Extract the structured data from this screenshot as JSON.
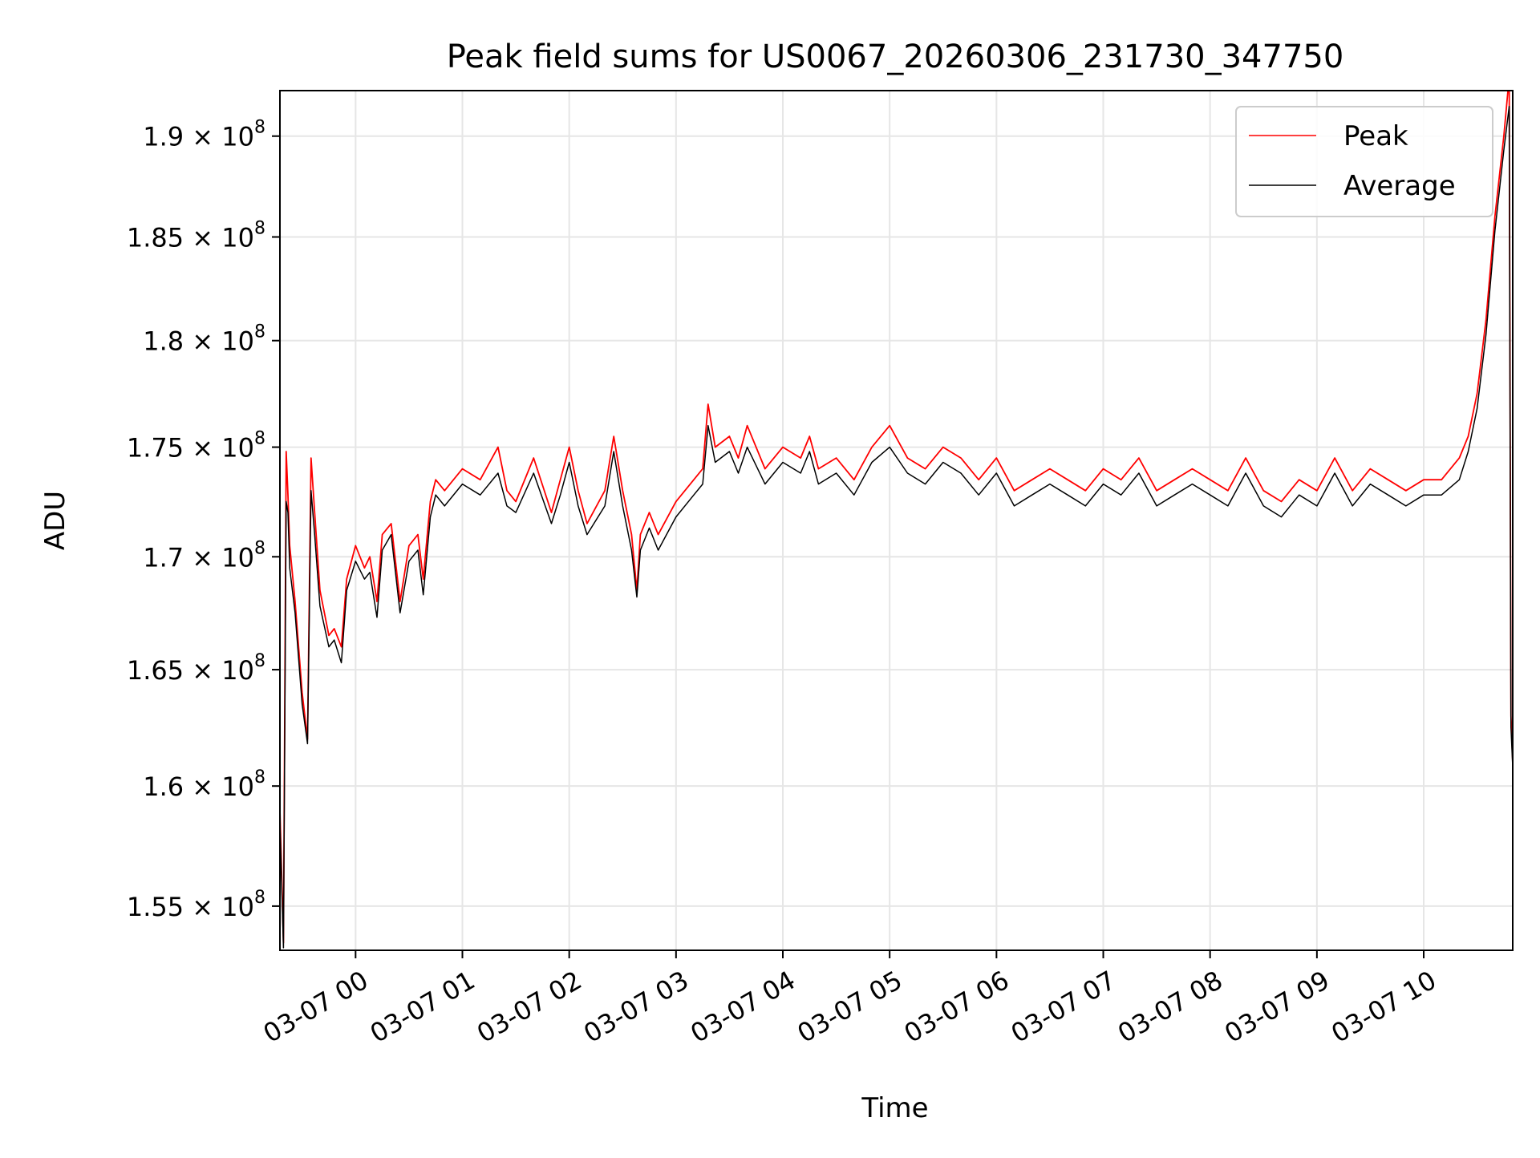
{
  "chart_data": {
    "type": "line",
    "title": "Peak field sums for US0067_20260306_231730_347750",
    "xlabel": "Time",
    "ylabel": "ADU",
    "x_unit": "datetime",
    "xlim": [
      "2026-03-06 23:17:30",
      "2026-03-07 10:50:00"
    ],
    "ylim": [
      153200000,
      192300000
    ],
    "y_scale": "log",
    "grid": true,
    "legend_position": "top-right",
    "x_ticks": [
      {
        "value": "2026-03-07 00:00",
        "label": "03-07 00"
      },
      {
        "value": "2026-03-07 01:00",
        "label": "03-07 01"
      },
      {
        "value": "2026-03-07 02:00",
        "label": "03-07 02"
      },
      {
        "value": "2026-03-07 03:00",
        "label": "03-07 03"
      },
      {
        "value": "2026-03-07 04:00",
        "label": "03-07 04"
      },
      {
        "value": "2026-03-07 05:00",
        "label": "03-07 05"
      },
      {
        "value": "2026-03-07 06:00",
        "label": "03-07 06"
      },
      {
        "value": "2026-03-07 07:00",
        "label": "03-07 07"
      },
      {
        "value": "2026-03-07 08:00",
        "label": "03-07 08"
      },
      {
        "value": "2026-03-07 09:00",
        "label": "03-07 09"
      },
      {
        "value": "2026-03-07 10:00",
        "label": "03-07 10"
      }
    ],
    "y_ticks": [
      {
        "value": 155000000,
        "mantissa": "1.55",
        "exp": "8"
      },
      {
        "value": 160000000,
        "mantissa": "1.6",
        "exp": "8"
      },
      {
        "value": 165000000,
        "mantissa": "1.65",
        "exp": "8"
      },
      {
        "value": 170000000,
        "mantissa": "1.7",
        "exp": "8"
      },
      {
        "value": 175000000,
        "mantissa": "1.75",
        "exp": "8"
      },
      {
        "value": 180000000,
        "mantissa": "1.8",
        "exp": "8"
      },
      {
        "value": 185000000,
        "mantissa": "1.85",
        "exp": "8"
      },
      {
        "value": 190000000,
        "mantissa": "1.9",
        "exp": "8"
      }
    ],
    "series": [
      {
        "name": "Peak",
        "color": "#ff0000",
        "x": [
          "2026-03-06 23:17:30",
          "2026-03-06 23:19:30",
          "2026-03-06 23:21:00",
          "2026-03-06 23:22:00",
          "2026-03-06 23:23:00",
          "2026-03-06 23:26:00",
          "2026-03-06 23:30:00",
          "2026-03-06 23:33:00",
          "2026-03-06 23:35:00",
          "2026-03-06 23:37:00",
          "2026-03-06 23:40:00",
          "2026-03-06 23:45:00",
          "2026-03-06 23:48:00",
          "2026-03-06 23:52:00",
          "2026-03-06 23:55:00",
          "2026-03-07 00:00:00",
          "2026-03-07 00:05:00",
          "2026-03-07 00:08:00",
          "2026-03-07 00:12:00",
          "2026-03-07 00:15:00",
          "2026-03-07 00:20:00",
          "2026-03-07 00:25:00",
          "2026-03-07 00:30:00",
          "2026-03-07 00:35:00",
          "2026-03-07 00:38:00",
          "2026-03-07 00:42:00",
          "2026-03-07 00:45:00",
          "2026-03-07 00:50:00",
          "2026-03-07 01:00:00",
          "2026-03-07 01:10:00",
          "2026-03-07 01:20:00",
          "2026-03-07 01:25:00",
          "2026-03-07 01:30:00",
          "2026-03-07 01:40:00",
          "2026-03-07 01:50:00",
          "2026-03-07 01:55:00",
          "2026-03-07 02:00:00",
          "2026-03-07 02:05:00",
          "2026-03-07 02:10:00",
          "2026-03-07 02:20:00",
          "2026-03-07 02:25:00",
          "2026-03-07 02:30:00",
          "2026-03-07 02:35:00",
          "2026-03-07 02:38:00",
          "2026-03-07 02:40:00",
          "2026-03-07 02:45:00",
          "2026-03-07 02:50:00",
          "2026-03-07 03:00:00",
          "2026-03-07 03:10:00",
          "2026-03-07 03:15:00",
          "2026-03-07 03:18:00",
          "2026-03-07 03:22:00",
          "2026-03-07 03:30:00",
          "2026-03-07 03:35:00",
          "2026-03-07 03:40:00",
          "2026-03-07 03:50:00",
          "2026-03-07 04:00:00",
          "2026-03-07 04:10:00",
          "2026-03-07 04:15:00",
          "2026-03-07 04:20:00",
          "2026-03-07 04:30:00",
          "2026-03-07 04:40:00",
          "2026-03-07 04:50:00",
          "2026-03-07 05:00:00",
          "2026-03-07 05:10:00",
          "2026-03-07 05:20:00",
          "2026-03-07 05:30:00",
          "2026-03-07 05:40:00",
          "2026-03-07 05:50:00",
          "2026-03-07 06:00:00",
          "2026-03-07 06:10:00",
          "2026-03-07 06:20:00",
          "2026-03-07 06:30:00",
          "2026-03-07 06:40:00",
          "2026-03-07 06:50:00",
          "2026-03-07 07:00:00",
          "2026-03-07 07:10:00",
          "2026-03-07 07:20:00",
          "2026-03-07 07:30:00",
          "2026-03-07 07:40:00",
          "2026-03-07 07:50:00",
          "2026-03-07 08:00:00",
          "2026-03-07 08:10:00",
          "2026-03-07 08:20:00",
          "2026-03-07 08:30:00",
          "2026-03-07 08:40:00",
          "2026-03-07 08:50:00",
          "2026-03-07 09:00:00",
          "2026-03-07 09:10:00",
          "2026-03-07 09:20:00",
          "2026-03-07 09:30:00",
          "2026-03-07 09:40:00",
          "2026-03-07 09:50:00",
          "2026-03-07 10:00:00",
          "2026-03-07 10:10:00",
          "2026-03-07 10:20:00",
          "2026-03-07 10:25:00",
          "2026-03-07 10:30:00",
          "2026-03-07 10:35:00",
          "2026-03-07 10:40:00",
          "2026-03-07 10:45:00",
          "2026-03-07 10:48:00",
          "2026-03-07 10:49:00",
          "2026-03-07 10:50:00"
        ],
        "y": [
          159000000,
          153500000,
          174800000,
          172800000,
          170500000,
          168000000,
          164000000,
          162000000,
          174500000,
          172000000,
          168500000,
          166500000,
          166800000,
          166000000,
          169000000,
          170500000,
          169500000,
          170000000,
          168000000,
          171000000,
          171500000,
          168000000,
          170500000,
          171000000,
          169000000,
          172500000,
          173500000,
          173000000,
          174000000,
          173500000,
          175000000,
          173000000,
          172500000,
          174500000,
          172000000,
          173500000,
          175000000,
          173000000,
          171500000,
          173000000,
          175500000,
          173000000,
          171000000,
          168500000,
          171000000,
          172000000,
          171000000,
          172500000,
          173500000,
          174000000,
          177000000,
          175000000,
          175500000,
          174500000,
          176000000,
          174000000,
          175000000,
          174500000,
          175500000,
          174000000,
          174500000,
          173500000,
          175000000,
          176000000,
          174500000,
          174000000,
          175000000,
          174500000,
          173500000,
          174500000,
          173000000,
          173500000,
          174000000,
          173500000,
          173000000,
          174000000,
          173500000,
          174500000,
          173000000,
          173500000,
          174000000,
          173500000,
          173000000,
          174500000,
          173000000,
          172500000,
          173500000,
          173000000,
          174500000,
          173000000,
          174000000,
          173500000,
          173000000,
          173500000,
          173500000,
          174500000,
          175500000,
          177500000,
          181000000,
          186000000,
          190000000,
          193000000,
          163000000,
          161000000
        ]
      },
      {
        "name": "Average",
        "color": "#000000",
        "x": [
          "2026-03-06 23:17:30",
          "2026-03-06 23:19:30",
          "2026-03-06 23:21:00",
          "2026-03-06 23:22:00",
          "2026-03-06 23:23:00",
          "2026-03-06 23:26:00",
          "2026-03-06 23:30:00",
          "2026-03-06 23:33:00",
          "2026-03-06 23:35:00",
          "2026-03-06 23:37:00",
          "2026-03-06 23:40:00",
          "2026-03-06 23:45:00",
          "2026-03-06 23:48:00",
          "2026-03-06 23:52:00",
          "2026-03-06 23:55:00",
          "2026-03-07 00:00:00",
          "2026-03-07 00:05:00",
          "2026-03-07 00:08:00",
          "2026-03-07 00:12:00",
          "2026-03-07 00:15:00",
          "2026-03-07 00:20:00",
          "2026-03-07 00:25:00",
          "2026-03-07 00:30:00",
          "2026-03-07 00:35:00",
          "2026-03-07 00:38:00",
          "2026-03-07 00:42:00",
          "2026-03-07 00:45:00",
          "2026-03-07 00:50:00",
          "2026-03-07 01:00:00",
          "2026-03-07 01:10:00",
          "2026-03-07 01:20:00",
          "2026-03-07 01:25:00",
          "2026-03-07 01:30:00",
          "2026-03-07 01:40:00",
          "2026-03-07 01:50:00",
          "2026-03-07 01:55:00",
          "2026-03-07 02:00:00",
          "2026-03-07 02:05:00",
          "2026-03-07 02:10:00",
          "2026-03-07 02:20:00",
          "2026-03-07 02:25:00",
          "2026-03-07 02:30:00",
          "2026-03-07 02:35:00",
          "2026-03-07 02:38:00",
          "2026-03-07 02:40:00",
          "2026-03-07 02:45:00",
          "2026-03-07 02:50:00",
          "2026-03-07 03:00:00",
          "2026-03-07 03:10:00",
          "2026-03-07 03:15:00",
          "2026-03-07 03:18:00",
          "2026-03-07 03:22:00",
          "2026-03-07 03:30:00",
          "2026-03-07 03:35:00",
          "2026-03-07 03:40:00",
          "2026-03-07 03:50:00",
          "2026-03-07 04:00:00",
          "2026-03-07 04:10:00",
          "2026-03-07 04:15:00",
          "2026-03-07 04:20:00",
          "2026-03-07 04:30:00",
          "2026-03-07 04:40:00",
          "2026-03-07 04:50:00",
          "2026-03-07 05:00:00",
          "2026-03-07 05:10:00",
          "2026-03-07 05:20:00",
          "2026-03-07 05:30:00",
          "2026-03-07 05:40:00",
          "2026-03-07 05:50:00",
          "2026-03-07 06:00:00",
          "2026-03-07 06:10:00",
          "2026-03-07 06:20:00",
          "2026-03-07 06:30:00",
          "2026-03-07 06:40:00",
          "2026-03-07 06:50:00",
          "2026-03-07 07:00:00",
          "2026-03-07 07:10:00",
          "2026-03-07 07:20:00",
          "2026-03-07 07:30:00",
          "2026-03-07 07:40:00",
          "2026-03-07 07:50:00",
          "2026-03-07 08:00:00",
          "2026-03-07 08:10:00",
          "2026-03-07 08:20:00",
          "2026-03-07 08:30:00",
          "2026-03-07 08:40:00",
          "2026-03-07 08:50:00",
          "2026-03-07 09:00:00",
          "2026-03-07 09:10:00",
          "2026-03-07 09:20:00",
          "2026-03-07 09:30:00",
          "2026-03-07 09:40:00",
          "2026-03-07 09:50:00",
          "2026-03-07 10:00:00",
          "2026-03-07 10:10:00",
          "2026-03-07 10:20:00",
          "2026-03-07 10:25:00",
          "2026-03-07 10:30:00",
          "2026-03-07 10:35:00",
          "2026-03-07 10:40:00",
          "2026-03-07 10:45:00",
          "2026-03-07 10:48:00",
          "2026-03-07 10:49:00",
          "2026-03-07 10:50:00"
        ],
        "y": [
          158500000,
          153300000,
          172500000,
          172000000,
          169500000,
          167500000,
          163500000,
          161800000,
          173000000,
          171000000,
          167800000,
          166000000,
          166300000,
          165300000,
          168500000,
          169800000,
          169000000,
          169300000,
          167300000,
          170300000,
          171000000,
          167500000,
          169800000,
          170300000,
          168300000,
          171800000,
          172800000,
          172300000,
          173300000,
          172800000,
          173800000,
          172300000,
          172000000,
          173800000,
          171500000,
          172800000,
          174300000,
          172300000,
          171000000,
          172300000,
          174800000,
          172300000,
          170300000,
          168200000,
          170300000,
          171300000,
          170300000,
          171800000,
          172800000,
          173300000,
          176000000,
          174300000,
          174800000,
          173800000,
          175000000,
          173300000,
          174300000,
          173800000,
          174800000,
          173300000,
          173800000,
          172800000,
          174300000,
          175000000,
          173800000,
          173300000,
          174300000,
          173800000,
          172800000,
          173800000,
          172300000,
          172800000,
          173300000,
          172800000,
          172300000,
          173300000,
          172800000,
          173800000,
          172300000,
          172800000,
          173300000,
          172800000,
          172300000,
          173800000,
          172300000,
          171800000,
          172800000,
          172300000,
          173800000,
          172300000,
          173300000,
          172800000,
          172300000,
          172800000,
          172800000,
          173500000,
          174800000,
          176800000,
          180300000,
          185300000,
          189300000,
          191500000,
          162500000,
          160800000
        ]
      }
    ]
  }
}
